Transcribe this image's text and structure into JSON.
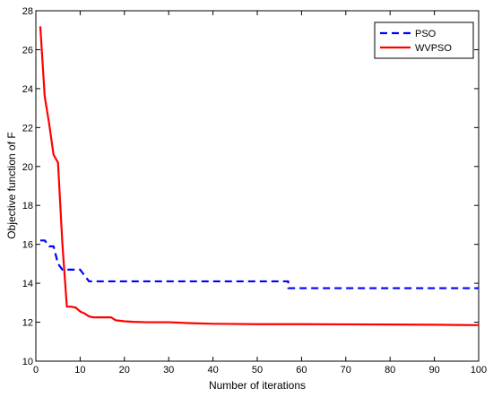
{
  "chart_data": {
    "type": "line",
    "title": "",
    "xlabel": "Number of iterations",
    "ylabel": "Objective function of F",
    "xlim": [
      0,
      100
    ],
    "ylim": [
      10,
      28
    ],
    "xticks": [
      0,
      10,
      20,
      30,
      40,
      50,
      60,
      70,
      80,
      90,
      100
    ],
    "yticks": [
      10,
      12,
      14,
      16,
      18,
      20,
      22,
      24,
      26,
      28
    ],
    "grid": false,
    "legend_position": "top-right",
    "series": [
      {
        "name": "PSO",
        "color": "#0000ff",
        "line_style": "dashed",
        "points": [
          [
            1,
            16.2
          ],
          [
            2,
            16.2
          ],
          [
            3,
            15.9
          ],
          [
            4,
            15.9
          ],
          [
            5,
            15.0
          ],
          [
            6,
            14.7
          ],
          [
            8,
            14.7
          ],
          [
            10,
            14.7
          ],
          [
            11,
            14.4
          ],
          [
            12,
            14.1
          ],
          [
            20,
            14.1
          ],
          [
            40,
            14.1
          ],
          [
            57,
            14.1
          ],
          [
            57,
            13.75
          ],
          [
            80,
            13.75
          ],
          [
            100,
            13.75
          ]
        ]
      },
      {
        "name": "WVPSO",
        "color": "#ff0000",
        "line_style": "solid",
        "points": [
          [
            1,
            27.2
          ],
          [
            2,
            23.6
          ],
          [
            3,
            22.2
          ],
          [
            4,
            20.6
          ],
          [
            5,
            20.2
          ],
          [
            6,
            16.0
          ],
          [
            7,
            12.8
          ],
          [
            8,
            12.8
          ],
          [
            9,
            12.75
          ],
          [
            10,
            12.55
          ],
          [
            11,
            12.45
          ],
          [
            12,
            12.3
          ],
          [
            13,
            12.25
          ],
          [
            14,
            12.25
          ],
          [
            17,
            12.25
          ],
          [
            18,
            12.1
          ],
          [
            20,
            12.05
          ],
          [
            22,
            12.02
          ],
          [
            25,
            12.0
          ],
          [
            30,
            12.0
          ],
          [
            35,
            11.95
          ],
          [
            40,
            11.92
          ],
          [
            50,
            11.9
          ],
          [
            60,
            11.9
          ],
          [
            70,
            11.89
          ],
          [
            80,
            11.88
          ],
          [
            90,
            11.87
          ],
          [
            95,
            11.86
          ],
          [
            100,
            11.85
          ]
        ]
      }
    ]
  }
}
